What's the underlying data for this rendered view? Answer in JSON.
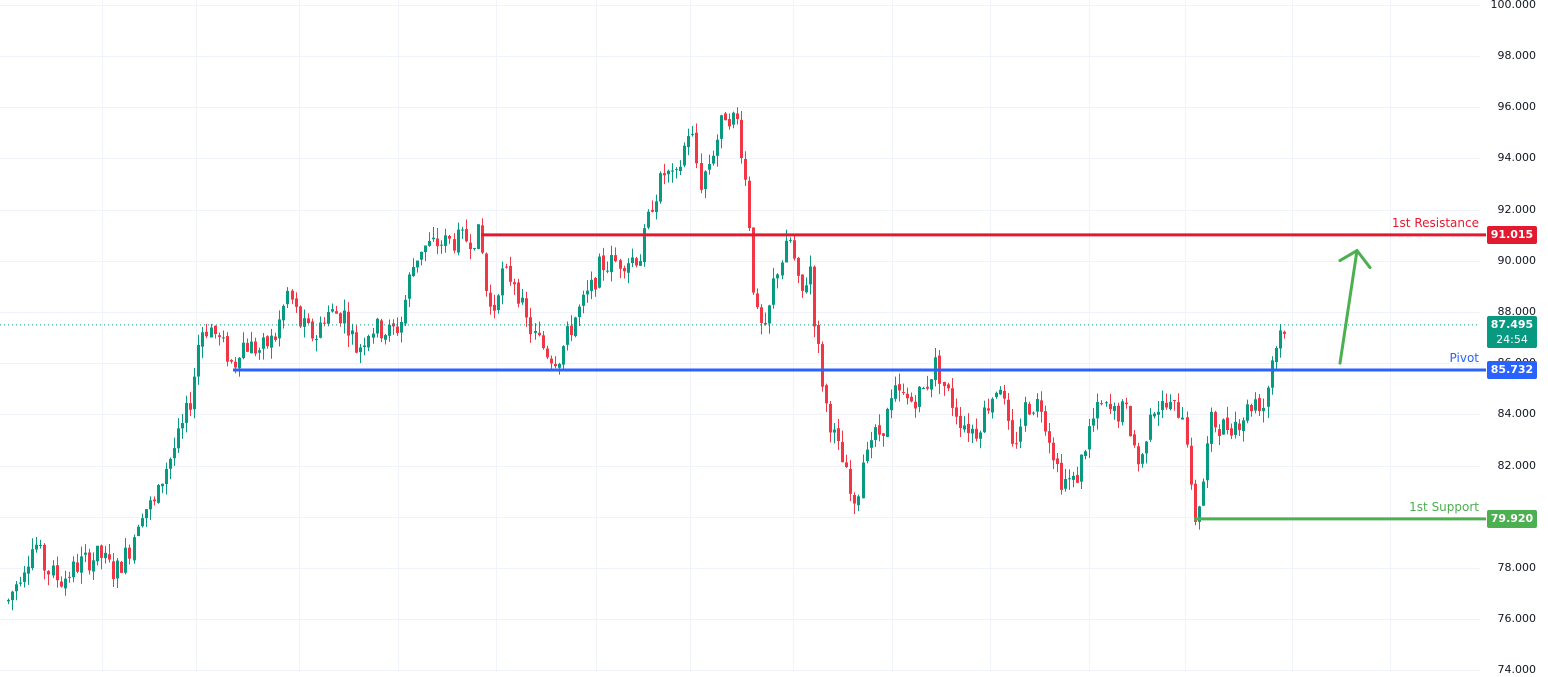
{
  "chart_data": {
    "type": "candlestick",
    "title": "",
    "xlabel": "",
    "ylabel": "",
    "ylim": [
      74,
      100
    ],
    "grid": true,
    "y_ticks": [
      "100.000",
      "98.000",
      "96.000",
      "94.000",
      "92.000",
      "90.000",
      "88.000",
      "86.000",
      "84.000",
      "82.000",
      "80.000",
      "78.000",
      "76.000",
      "74.000"
    ],
    "y_tick_values": [
      100,
      98,
      96,
      94,
      92,
      90,
      88,
      86,
      84,
      82,
      80,
      78,
      76,
      74
    ],
    "current_price": {
      "value": "87.495",
      "countdown": "24:54",
      "color": "#089981"
    },
    "levels": [
      {
        "name": "1st Resistance",
        "value": 91.015,
        "label": "91.015",
        "color": "#e3192f",
        "x_start": 481
      },
      {
        "name": "Pivot",
        "value": 85.732,
        "label": "85.732",
        "color": "#2962ff",
        "x_start": 233
      },
      {
        "name": "1st Support",
        "value": 79.92,
        "label": "79.920",
        "color": "#4caf50",
        "x_start": 1194
      }
    ],
    "annotation": {
      "type": "arrow",
      "direction": "up",
      "color": "#4caf50",
      "from_price": 86.0,
      "to_price": 90.4
    },
    "colors": {
      "up": "#089981",
      "down": "#f23645",
      "grid": "#f0f3fa"
    },
    "price_path_waypoints": [
      [
        8,
        76.7
      ],
      [
        20,
        77.8
      ],
      [
        35,
        79.0
      ],
      [
        45,
        78.0
      ],
      [
        60,
        77.5
      ],
      [
        80,
        78.2
      ],
      [
        100,
        78.5
      ],
      [
        115,
        77.8
      ],
      [
        130,
        78.8
      ],
      [
        140,
        80.3
      ],
      [
        155,
        80.5
      ],
      [
        165,
        81.9
      ],
      [
        180,
        83.2
      ],
      [
        190,
        84.5
      ],
      [
        196,
        86.0
      ],
      [
        200,
        87.3
      ],
      [
        210,
        87.4
      ],
      [
        225,
        86.5
      ],
      [
        233,
        85.8
      ],
      [
        240,
        86.8
      ],
      [
        260,
        86.5
      ],
      [
        275,
        87.0
      ],
      [
        288,
        88.8
      ],
      [
        300,
        87.5
      ],
      [
        315,
        87.0
      ],
      [
        325,
        88.0
      ],
      [
        345,
        87.9
      ],
      [
        357,
        86.5
      ],
      [
        370,
        87.4
      ],
      [
        390,
        87.2
      ],
      [
        400,
        87.5
      ],
      [
        410,
        89.5
      ],
      [
        420,
        90.5
      ],
      [
        440,
        90.7
      ],
      [
        460,
        90.8
      ],
      [
        480,
        91.0
      ],
      [
        485,
        89.0
      ],
      [
        492,
        87.8
      ],
      [
        500,
        89.5
      ],
      [
        515,
        89.3
      ],
      [
        525,
        87.7
      ],
      [
        535,
        87.0
      ],
      [
        550,
        86.3
      ],
      [
        558,
        86.2
      ],
      [
        575,
        87.8
      ],
      [
        590,
        88.8
      ],
      [
        600,
        89.8
      ],
      [
        620,
        90.0
      ],
      [
        640,
        90.2
      ],
      [
        652,
        92.3
      ],
      [
        665,
        93.5
      ],
      [
        675,
        93.0
      ],
      [
        690,
        95.3
      ],
      [
        700,
        93.0
      ],
      [
        710,
        94.0
      ],
      [
        725,
        95.8
      ],
      [
        738,
        95.4
      ],
      [
        748,
        92.2
      ],
      [
        755,
        88.0
      ],
      [
        765,
        87.0
      ],
      [
        775,
        89.5
      ],
      [
        790,
        90.8
      ],
      [
        800,
        88.5
      ],
      [
        810,
        89.8
      ],
      [
        815,
        87.3
      ],
      [
        825,
        84.5
      ],
      [
        835,
        83.0
      ],
      [
        845,
        81.8
      ],
      [
        855,
        80.0
      ],
      [
        865,
        83.0
      ],
      [
        880,
        83.3
      ],
      [
        895,
        84.8
      ],
      [
        910,
        84.5
      ],
      [
        925,
        85.0
      ],
      [
        935,
        86.0
      ],
      [
        945,
        85.0
      ],
      [
        960,
        83.8
      ],
      [
        975,
        83.3
      ],
      [
        990,
        84.6
      ],
      [
        1000,
        85.3
      ],
      [
        1012,
        82.5
      ],
      [
        1025,
        84.3
      ],
      [
        1040,
        84.5
      ],
      [
        1050,
        83.0
      ],
      [
        1060,
        81.5
      ],
      [
        1075,
        81.3
      ],
      [
        1090,
        83.5
      ],
      [
        1100,
        84.3
      ],
      [
        1115,
        84.0
      ],
      [
        1125,
        84.2
      ],
      [
        1140,
        81.8
      ],
      [
        1150,
        84.3
      ],
      [
        1165,
        84.3
      ],
      [
        1185,
        84.1
      ],
      [
        1190,
        81.0
      ],
      [
        1195,
        79.9
      ],
      [
        1202,
        81.2
      ],
      [
        1210,
        83.7
      ],
      [
        1225,
        83.5
      ],
      [
        1240,
        83.8
      ],
      [
        1255,
        84.6
      ],
      [
        1265,
        84.3
      ],
      [
        1270,
        86.0
      ],
      [
        1280,
        87.3
      ],
      [
        1285,
        87.5
      ]
    ],
    "x_first_candle": 8,
    "x_last_candle": 1285,
    "candle_spacing_px": 4.05
  }
}
